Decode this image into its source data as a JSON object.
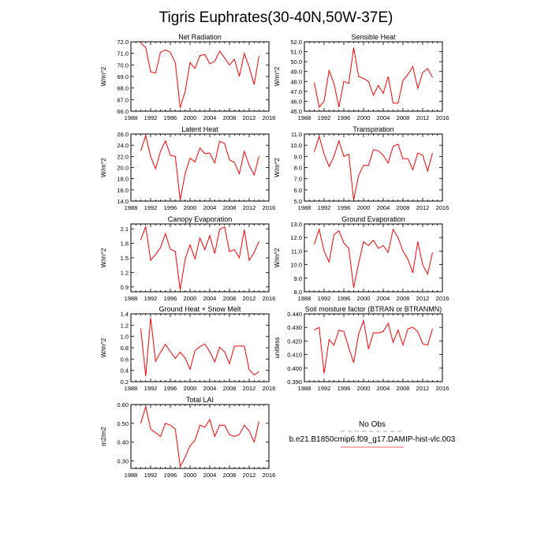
{
  "figure": {
    "title": "Tigris Euphrates(30-40N,50W-37E)",
    "legend": {
      "obs_label": "No Obs",
      "model_label": "b.e21.B1850cmip6.f09_g17.DAMIP-hist-vlc.003",
      "obs_color": "#a9b8e6",
      "model_color": "#f08080"
    },
    "line_color": "#ff0000"
  },
  "chart_data": [
    {
      "type": "line",
      "title": "Net Radiation",
      "xlabel": "",
      "ylabel": "W/m^2",
      "xlim": [
        1988,
        2016
      ],
      "ylim": [
        66.0,
        72.0
      ],
      "xticks": [
        1988,
        1992,
        1996,
        2000,
        2004,
        2008,
        2012,
        2016
      ],
      "yticks": [
        66.0,
        67.0,
        68.0,
        69.0,
        70.0,
        71.0,
        72.0
      ],
      "ytick_labels": [
        "66.0",
        "67.0",
        "68.0",
        "69.0",
        "70.0",
        "71.0",
        "72.0"
      ],
      "series": [
        {
          "x": [
            1990,
            1991,
            1992,
            1993,
            1994,
            1995,
            1996,
            1997,
            1998,
            1999,
            2000,
            2001,
            2002,
            2003,
            2004,
            2005,
            2006,
            2007,
            2008,
            2009,
            2010,
            2011,
            2012,
            2013,
            2014
          ],
          "values": [
            71.9,
            71.5,
            69.4,
            69.3,
            71.1,
            71.3,
            71.1,
            70.2,
            66.3,
            67.7,
            70.2,
            69.7,
            70.8,
            70.9,
            70.1,
            70.3,
            71.2,
            70.6,
            70.0,
            70.5,
            69.0,
            71.0,
            69.8,
            68.3,
            70.8
          ]
        }
      ]
    },
    {
      "type": "line",
      "title": "Sensible Heat",
      "xlabel": "",
      "ylabel": "W/m^2",
      "xlim": [
        1988,
        2016
      ],
      "ylim": [
        45.0,
        52.0
      ],
      "xticks": [
        1988,
        1992,
        1996,
        2000,
        2004,
        2008,
        2012,
        2016
      ],
      "yticks": [
        45.0,
        46.0,
        47.0,
        48.0,
        49.0,
        50.0,
        51.0,
        52.0
      ],
      "ytick_labels": [
        "45.0",
        "46.0",
        "47.0",
        "48.0",
        "49.0",
        "50.0",
        "51.0",
        "52.0"
      ],
      "series": [
        {
          "x": [
            1990,
            1991,
            1992,
            1993,
            1994,
            1995,
            1996,
            1997,
            1998,
            1999,
            2000,
            2001,
            2002,
            2003,
            2004,
            2005,
            2006,
            2007,
            2008,
            2009,
            2010,
            2011,
            2012,
            2013,
            2014
          ],
          "values": [
            47.9,
            45.4,
            46.0,
            49.1,
            47.8,
            45.4,
            48.0,
            47.8,
            51.4,
            48.5,
            48.3,
            48.0,
            46.6,
            47.6,
            46.8,
            48.5,
            45.8,
            45.8,
            48.1,
            48.7,
            49.5,
            47.3,
            48.9,
            49.3,
            48.4
          ]
        }
      ]
    },
    {
      "type": "line",
      "title": "Latent Heat",
      "xlabel": "",
      "ylabel": "W/m^2",
      "xlim": [
        1988,
        2016
      ],
      "ylim": [
        14.0,
        26.0
      ],
      "xticks": [
        1988,
        1992,
        1996,
        2000,
        2004,
        2008,
        2012,
        2016
      ],
      "yticks": [
        14.0,
        16.0,
        18.0,
        20.0,
        22.0,
        24.0,
        26.0
      ],
      "ytick_labels": [
        "14.0",
        "16.0",
        "18.0",
        "20.0",
        "22.0",
        "24.0",
        "26.0"
      ],
      "series": [
        {
          "x": [
            1990,
            1991,
            1992,
            1993,
            1994,
            1995,
            1996,
            1997,
            1998,
            1999,
            2000,
            2001,
            2002,
            2003,
            2004,
            2005,
            2006,
            2007,
            2008,
            2009,
            2010,
            2011,
            2012,
            2013,
            2014
          ],
          "values": [
            23.0,
            25.7,
            22.0,
            19.8,
            22.9,
            24.8,
            22.2,
            22.0,
            14.2,
            18.9,
            21.7,
            21.0,
            23.5,
            22.5,
            22.6,
            20.8,
            24.7,
            24.3,
            21.4,
            20.9,
            18.9,
            22.9,
            20.4,
            18.7,
            22.0
          ]
        }
      ]
    },
    {
      "type": "line",
      "title": "Transpiration",
      "xlabel": "",
      "ylabel": "W/m^2",
      "xlim": [
        1988,
        2016
      ],
      "ylim": [
        5.0,
        11.0
      ],
      "xticks": [
        1988,
        1992,
        1996,
        2000,
        2004,
        2008,
        2012,
        2016
      ],
      "yticks": [
        5.0,
        6.0,
        7.0,
        8.0,
        9.0,
        10.0,
        11.0
      ],
      "ytick_labels": [
        "5.0",
        "6.0",
        "7.0",
        "8.0",
        "9.0",
        "10.0",
        "11.0"
      ],
      "series": [
        {
          "x": [
            1990,
            1991,
            1992,
            1993,
            1994,
            1995,
            1996,
            1997,
            1998,
            1999,
            2000,
            2001,
            2002,
            2003,
            2004,
            2005,
            2006,
            2007,
            2008,
            2009,
            2010,
            2011,
            2012,
            2013,
            2014
          ],
          "values": [
            9.4,
            10.8,
            9.2,
            8.1,
            9.0,
            10.4,
            9.0,
            9.2,
            5.1,
            7.3,
            8.2,
            8.2,
            9.6,
            9.5,
            9.1,
            8.4,
            9.9,
            10.1,
            8.8,
            8.8,
            7.8,
            9.3,
            9.1,
            7.7,
            9.3
          ]
        }
      ]
    },
    {
      "type": "line",
      "title": "Canopy Evaporation",
      "xlabel": "",
      "ylabel": "W/m^2",
      "xlim": [
        1988,
        2016
      ],
      "ylim": [
        0.8,
        2.2
      ],
      "xticks": [
        1988,
        1992,
        1996,
        2000,
        2004,
        2008,
        2012,
        2016
      ],
      "yticks": [
        0.9,
        1.2,
        1.5,
        1.8,
        2.1
      ],
      "ytick_labels": [
        "0.9",
        "1.2",
        "1.5",
        "1.8",
        "2.1"
      ],
      "series": [
        {
          "x": [
            1990,
            1991,
            1992,
            1993,
            1994,
            1995,
            1996,
            1997,
            1998,
            1999,
            2000,
            2001,
            2002,
            2003,
            2004,
            2005,
            2006,
            2007,
            2008,
            2009,
            2010,
            2011,
            2012,
            2013,
            2014
          ],
          "values": [
            1.87,
            2.15,
            1.45,
            1.57,
            1.71,
            2.0,
            1.68,
            1.63,
            0.84,
            1.47,
            1.77,
            1.48,
            1.91,
            1.67,
            1.96,
            1.59,
            2.09,
            2.14,
            1.63,
            1.67,
            1.5,
            2.08,
            1.45,
            1.61,
            1.84
          ]
        }
      ]
    },
    {
      "type": "line",
      "title": "Ground Evaporation",
      "xlabel": "",
      "ylabel": "W/m^2",
      "xlim": [
        1988,
        2016
      ],
      "ylim": [
        8.0,
        13.0
      ],
      "xticks": [
        1988,
        1992,
        1996,
        2000,
        2004,
        2008,
        2012,
        2016
      ],
      "yticks": [
        8.0,
        9.0,
        10.0,
        11.0,
        12.0,
        13.0
      ],
      "ytick_labels": [
        "8.0",
        "9.0",
        "10.0",
        "11.0",
        "12.0",
        "13.0"
      ],
      "series": [
        {
          "x": [
            1990,
            1991,
            1992,
            1993,
            1994,
            1995,
            1996,
            1997,
            1998,
            1999,
            2000,
            2001,
            2002,
            2003,
            2004,
            2005,
            2006,
            2007,
            2008,
            2009,
            2010,
            2011,
            2012,
            2013,
            2014
          ],
          "values": [
            11.5,
            12.6,
            11.0,
            10.2,
            12.2,
            12.5,
            11.6,
            11.2,
            8.3,
            10.1,
            11.7,
            11.4,
            11.8,
            11.2,
            11.4,
            10.9,
            12.6,
            12.0,
            11.0,
            10.4,
            9.4,
            11.7,
            10.0,
            9.3,
            10.9
          ]
        }
      ]
    },
    {
      "type": "line",
      "title": "Ground Heat + Snow Melt",
      "xlabel": "",
      "ylabel": "W/m^2",
      "xlim": [
        1988,
        2016
      ],
      "ylim": [
        0.2,
        1.4
      ],
      "xticks": [
        1988,
        1992,
        1996,
        2000,
        2004,
        2008,
        2012,
        2016
      ],
      "yticks": [
        0.2,
        0.4,
        0.6,
        0.8,
        1.0,
        1.2,
        1.4
      ],
      "ytick_labels": [
        "0.2",
        "0.4",
        "0.6",
        "0.8",
        "1.0",
        "1.2",
        "1.4"
      ],
      "series": [
        {
          "x": [
            1990,
            1991,
            1992,
            1993,
            1994,
            1995,
            1996,
            1997,
            1998,
            1999,
            2000,
            2001,
            2002,
            2003,
            2004,
            2005,
            2006,
            2007,
            2008,
            2009,
            2010,
            2011,
            2012,
            2013,
            2014
          ],
          "values": [
            1.14,
            0.3,
            1.33,
            0.56,
            0.72,
            0.86,
            0.73,
            0.61,
            0.72,
            0.62,
            0.42,
            0.75,
            0.82,
            0.87,
            0.73,
            0.55,
            0.81,
            0.73,
            0.52,
            0.83,
            0.83,
            0.83,
            0.41,
            0.32,
            0.38
          ]
        }
      ]
    },
    {
      "type": "line",
      "title": "Soil moisture factor (BTRAN or BTRANMN)",
      "xlabel": "",
      "ylabel": "unitless",
      "xlim": [
        1988,
        2016
      ],
      "ylim": [
        0.39,
        0.44
      ],
      "xticks": [
        1988,
        1992,
        1996,
        2000,
        2004,
        2008,
        2012,
        2016
      ],
      "yticks": [
        0.39,
        0.4,
        0.41,
        0.42,
        0.43,
        0.44
      ],
      "ytick_labels": [
        "0.390",
        "0.400",
        "0.410",
        "0.420",
        "0.430",
        "0.440"
      ],
      "series": [
        {
          "x": [
            1990,
            1991,
            1992,
            1993,
            1994,
            1995,
            1996,
            1997,
            1998,
            1999,
            2000,
            2001,
            2002,
            2003,
            2004,
            2005,
            2006,
            2007,
            2008,
            2009,
            2010,
            2011,
            2012,
            2013,
            2014
          ],
          "values": [
            0.428,
            0.43,
            0.396,
            0.421,
            0.417,
            0.428,
            0.427,
            0.415,
            0.404,
            0.425,
            0.435,
            0.414,
            0.426,
            0.426,
            0.427,
            0.433,
            0.419,
            0.428,
            0.417,
            0.429,
            0.43,
            0.427,
            0.418,
            0.417,
            0.429
          ]
        }
      ]
    },
    {
      "type": "line",
      "title": "Total LAI",
      "xlabel": "",
      "ylabel": "m2/m2",
      "xlim": [
        1988,
        2016
      ],
      "ylim": [
        0.26,
        0.6
      ],
      "xticks": [
        1988,
        1992,
        1996,
        2000,
        2004,
        2008,
        2012,
        2016
      ],
      "yticks": [
        0.3,
        0.4,
        0.5,
        0.6
      ],
      "ytick_labels": [
        "0.30",
        "0.40",
        "0.50",
        "0.60"
      ],
      "series": [
        {
          "x": [
            1990,
            1991,
            1992,
            1993,
            1994,
            1995,
            1996,
            1997,
            1998,
            1999,
            2000,
            2001,
            2002,
            2003,
            2004,
            2005,
            2006,
            2007,
            2008,
            2009,
            2010,
            2011,
            2012,
            2013,
            2014
          ],
          "values": [
            0.5,
            0.59,
            0.47,
            0.45,
            0.43,
            0.5,
            0.49,
            0.47,
            0.27,
            0.32,
            0.38,
            0.41,
            0.49,
            0.48,
            0.52,
            0.43,
            0.49,
            0.49,
            0.44,
            0.43,
            0.44,
            0.49,
            0.46,
            0.4,
            0.51
          ]
        }
      ]
    }
  ]
}
